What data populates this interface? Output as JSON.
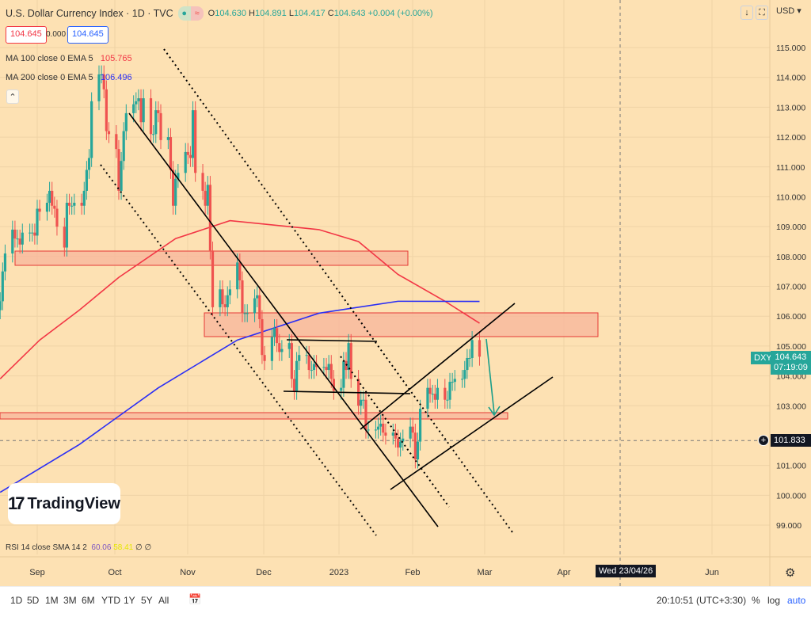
{
  "header": {
    "title": "U.S. Dollar Currency Index · 1D · TVC",
    "o_label": "O",
    "o": "104.630",
    "h_label": "H",
    "h": "104.891",
    "l_label": "L",
    "l": "104.417",
    "c_label": "C",
    "c": "104.643",
    "change": "+0.004 (+0.00%)",
    "sell_price": "104.645",
    "spread": "0.000",
    "buy_price": "104.645"
  },
  "indicators": {
    "ma100_label": "MA 100 close 0 EMA 5",
    "ma100_value": "105.765",
    "ma200_label": "MA 200 close 0 EMA 5",
    "ma200_value": "106.496",
    "rsi_label": "RSI 14 close SMA 14 2",
    "rsi_value": "60.06",
    "rsi_sma": "58.41",
    "rsi_extra": "∅ ∅",
    "collapse_icon": "chevron-up-icon"
  },
  "axis": {
    "currency": "USD",
    "symbol_tag": "DXY",
    "last_price": "104.643",
    "countdown": "07:19:09",
    "crosshair_price": "101.833",
    "crosshair_date": "Wed 23/04/26"
  },
  "toolbar": {
    "ranges": [
      "1D",
      "5D",
      "1M",
      "3M",
      "6M",
      "YTD",
      "1Y",
      "5Y",
      "All"
    ],
    "time": "20:10:51 (UTC+3:30)",
    "percent": "%",
    "log": "log",
    "auto": "auto"
  },
  "logo": "TradingView",
  "colors": {
    "background": "#fde1b3",
    "up": "#26a69a",
    "down": "#ef5350",
    "ma100": "#f23645",
    "ma200": "#2a2ef5",
    "zone": "#f7b89c"
  },
  "chart_data": {
    "type": "candlestick",
    "title": "U.S. Dollar Currency Index · 1D · TVC",
    "x_ticks": [
      "Sep",
      "Oct",
      "Nov",
      "Dec",
      "2023",
      "Feb",
      "Mar",
      "Apr",
      "Jun"
    ],
    "y_ticks": [
      "115.000",
      "114.000",
      "113.000",
      "112.000",
      "111.000",
      "110.000",
      "109.000",
      "108.000",
      "107.000",
      "106.000",
      "105.000",
      "104.000",
      "103.000",
      "101.000",
      "100.000",
      "99.000"
    ],
    "ylim": [
      98.6,
      116
    ],
    "grid": true,
    "closes": [
      [
        "2022-08-17",
        106.5
      ],
      [
        "2022-08-18",
        107.5
      ],
      [
        "2022-08-19",
        108.1
      ],
      [
        "2022-08-22",
        108.9
      ],
      [
        "2022-08-23",
        108.6
      ],
      [
        "2022-08-24",
        108.6
      ],
      [
        "2022-08-25",
        108.4
      ],
      [
        "2022-08-26",
        108.8
      ],
      [
        "2022-08-29",
        108.8
      ],
      [
        "2022-08-30",
        108.8
      ],
      [
        "2022-08-31",
        108.7
      ],
      [
        "2022-09-01",
        109.6
      ],
      [
        "2022-09-02",
        109.5
      ],
      [
        "2022-09-05",
        109.8
      ],
      [
        "2022-09-06",
        110.2
      ],
      [
        "2022-09-07",
        109.7
      ],
      [
        "2022-09-08",
        109.6
      ],
      [
        "2022-09-09",
        109.0
      ],
      [
        "2022-09-12",
        108.3
      ],
      [
        "2022-09-13",
        109.8
      ],
      [
        "2022-09-14",
        109.7
      ],
      [
        "2022-09-15",
        109.7
      ],
      [
        "2022-09-16",
        109.8
      ],
      [
        "2022-09-19",
        109.7
      ],
      [
        "2022-09-20",
        110.2
      ],
      [
        "2022-09-21",
        110.9
      ],
      [
        "2022-09-22",
        111.3
      ],
      [
        "2022-09-23",
        113.2
      ],
      [
        "2022-09-26",
        114.1
      ],
      [
        "2022-09-27",
        114.1
      ],
      [
        "2022-09-28",
        113.6
      ],
      [
        "2022-09-29",
        112.2
      ],
      [
        "2022-09-30",
        112.1
      ],
      [
        "2022-10-03",
        111.6
      ],
      [
        "2022-10-04",
        110.2
      ],
      [
        "2022-10-05",
        111.2
      ],
      [
        "2022-10-06",
        112.2
      ],
      [
        "2022-10-07",
        112.8
      ],
      [
        "2022-10-10",
        113.1
      ],
      [
        "2022-10-11",
        113.2
      ],
      [
        "2022-10-12",
        113.3
      ],
      [
        "2022-10-13",
        112.5
      ],
      [
        "2022-10-14",
        113.3
      ],
      [
        "2022-10-17",
        112.1
      ],
      [
        "2022-10-18",
        112.1
      ],
      [
        "2022-10-19",
        112.9
      ],
      [
        "2022-10-20",
        112.8
      ],
      [
        "2022-10-21",
        111.9
      ],
      [
        "2022-10-24",
        112.0
      ],
      [
        "2022-10-25",
        110.9
      ],
      [
        "2022-10-26",
        109.7
      ],
      [
        "2022-10-27",
        110.6
      ],
      [
        "2022-10-28",
        110.8
      ],
      [
        "2022-10-31",
        111.5
      ],
      [
        "2022-11-01",
        111.4
      ],
      [
        "2022-11-02",
        111.3
      ],
      [
        "2022-11-03",
        112.9
      ],
      [
        "2022-11-04",
        110.8
      ],
      [
        "2022-11-07",
        110.2
      ],
      [
        "2022-11-08",
        109.7
      ],
      [
        "2022-11-09",
        110.4
      ],
      [
        "2022-11-10",
        108.2
      ],
      [
        "2022-11-11",
        106.3
      ],
      [
        "2022-11-14",
        106.9
      ],
      [
        "2022-11-15",
        106.4
      ],
      [
        "2022-11-16",
        106.3
      ],
      [
        "2022-11-17",
        106.7
      ],
      [
        "2022-11-18",
        106.9
      ],
      [
        "2022-11-21",
        107.8
      ],
      [
        "2022-11-22",
        107.2
      ],
      [
        "2022-11-23",
        106.1
      ],
      [
        "2022-11-24",
        106.1
      ],
      [
        "2022-11-25",
        106.1
      ],
      [
        "2022-11-28",
        106.6
      ],
      [
        "2022-11-29",
        106.7
      ],
      [
        "2022-11-30",
        105.9
      ],
      [
        "2022-12-01",
        104.7
      ],
      [
        "2022-12-02",
        104.5
      ],
      [
        "2022-12-05",
        105.3
      ],
      [
        "2022-12-06",
        105.6
      ],
      [
        "2022-12-07",
        105.1
      ],
      [
        "2022-12-08",
        104.8
      ],
      [
        "2022-12-09",
        104.9
      ],
      [
        "2022-12-12",
        105.1
      ],
      [
        "2022-12-13",
        103.9
      ],
      [
        "2022-12-14",
        103.5
      ],
      [
        "2022-12-15",
        104.5
      ],
      [
        "2022-12-16",
        104.7
      ],
      [
        "2022-12-19",
        104.7
      ],
      [
        "2022-12-20",
        104.2
      ],
      [
        "2022-12-21",
        104.2
      ],
      [
        "2022-12-22",
        104.4
      ],
      [
        "2022-12-23",
        104.3
      ],
      [
        "2022-12-26",
        104.3
      ],
      [
        "2022-12-27",
        104.2
      ],
      [
        "2022-12-28",
        104.4
      ],
      [
        "2022-12-29",
        103.9
      ],
      [
        "2022-12-30",
        103.5
      ],
      [
        "2023-01-02",
        103.6
      ],
      [
        "2023-01-03",
        104.5
      ],
      [
        "2023-01-04",
        104.2
      ],
      [
        "2023-01-05",
        105.1
      ],
      [
        "2023-01-06",
        103.9
      ],
      [
        "2023-01-09",
        103.0
      ],
      [
        "2023-01-10",
        103.2
      ],
      [
        "2023-01-11",
        103.2
      ],
      [
        "2023-01-12",
        102.2
      ],
      [
        "2023-01-13",
        102.2
      ],
      [
        "2023-01-16",
        102.2
      ],
      [
        "2023-01-17",
        102.3
      ],
      [
        "2023-01-18",
        102.4
      ],
      [
        "2023-01-19",
        102.1
      ],
      [
        "2023-01-20",
        102.0
      ],
      [
        "2023-01-23",
        102.1
      ],
      [
        "2023-01-24",
        101.9
      ],
      [
        "2023-01-25",
        101.6
      ],
      [
        "2023-01-26",
        101.8
      ],
      [
        "2023-01-27",
        101.9
      ],
      [
        "2023-01-30",
        102.3
      ],
      [
        "2023-01-31",
        102.1
      ],
      [
        "2023-02-01",
        101.2
      ],
      [
        "2023-02-02",
        101.8
      ],
      [
        "2023-02-03",
        102.9
      ],
      [
        "2023-02-06",
        103.6
      ],
      [
        "2023-02-07",
        103.4
      ],
      [
        "2023-02-08",
        103.4
      ],
      [
        "2023-02-09",
        103.2
      ],
      [
        "2023-02-10",
        103.6
      ],
      [
        "2023-02-13",
        103.2
      ],
      [
        "2023-02-14",
        103.2
      ],
      [
        "2023-02-15",
        103.8
      ],
      [
        "2023-02-16",
        103.8
      ],
      [
        "2023-02-17",
        103.9
      ],
      [
        "2023-02-20",
        103.9
      ],
      [
        "2023-02-21",
        104.2
      ],
      [
        "2023-02-22",
        104.6
      ],
      [
        "2023-02-23",
        104.6
      ],
      [
        "2023-02-24",
        105.2
      ],
      [
        "2023-02-27",
        104.643
      ]
    ],
    "series": [
      {
        "name": "MA 100 close 0 EMA 5",
        "points": [
          [
            "2022-08-17",
            103.9
          ],
          [
            "2022-09-02",
            105.2
          ],
          [
            "2022-09-18",
            106.2
          ],
          [
            "2022-10-04",
            107.3
          ],
          [
            "2022-10-27",
            108.6
          ],
          [
            "2022-11-18",
            109.2
          ],
          [
            "2022-12-24",
            108.9
          ],
          [
            "2023-01-09",
            108.5
          ],
          [
            "2023-01-25",
            107.4
          ],
          [
            "2023-02-13",
            106.5
          ],
          [
            "2023-02-27",
            105.765
          ]
        ]
      },
      {
        "name": "MA 200 close 0 EMA 5",
        "points": [
          [
            "2022-08-17",
            100.1
          ],
          [
            "2022-09-18",
            101.7
          ],
          [
            "2022-10-20",
            103.6
          ],
          [
            "2022-11-21",
            105.2
          ],
          [
            "2022-12-24",
            106.1
          ],
          [
            "2023-01-25",
            106.5
          ],
          [
            "2023-02-27",
            106.496
          ]
        ]
      }
    ]
  }
}
